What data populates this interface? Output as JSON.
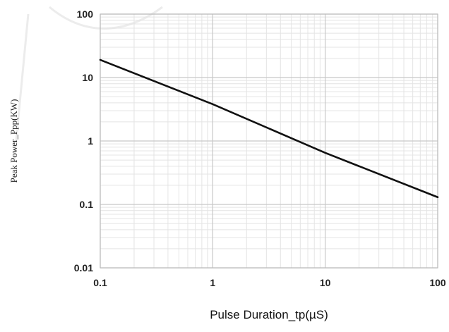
{
  "chart_data": {
    "type": "line",
    "title": "",
    "xlabel": "Pulse Duration_tp(µS)",
    "ylabel": "Peak Power_Ppp(KW)",
    "xscale": "log",
    "yscale": "log",
    "xlim": [
      0.1,
      100
    ],
    "ylim": [
      0.01,
      100
    ],
    "grid": true,
    "legend": "none",
    "x_ticks": [
      0.1,
      1,
      10,
      100
    ],
    "x_tick_labels": [
      "0.1",
      "1",
      "10",
      "100"
    ],
    "y_ticks": [
      0.01,
      0.1,
      1,
      10,
      100
    ],
    "y_tick_labels": [
      "0.01",
      "0.1",
      "1",
      "10",
      "100"
    ],
    "series": [
      {
        "x": [
          0.1,
          1,
          10,
          100
        ],
        "y": [
          19,
          3.8,
          0.65,
          0.13
        ]
      }
    ],
    "colors": {
      "line": "#111111",
      "grid_major": "#c8c8c8",
      "grid_minor": "#e4e4e4",
      "frame": "#bdbdbd"
    }
  }
}
